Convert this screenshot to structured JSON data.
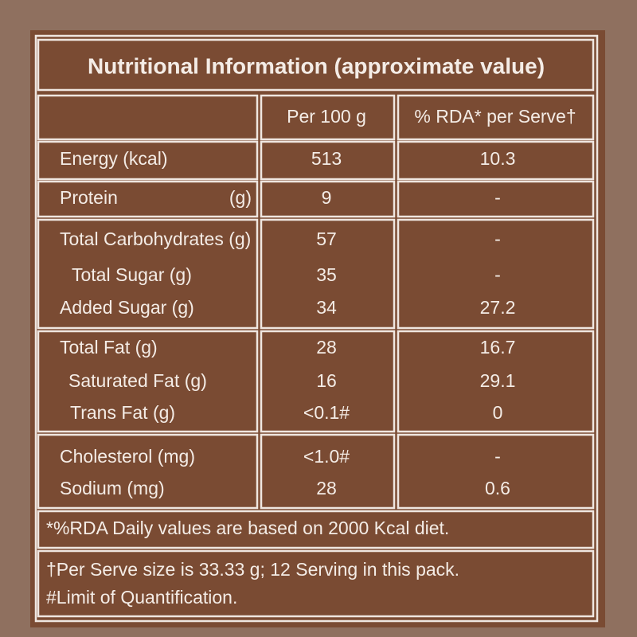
{
  "title": "Nutritional Information (approximate value)",
  "table": {
    "headers": [
      "Per 100 g",
      "% RDA* per Serve†"
    ],
    "groups": [
      [
        {
          "label": "Energy (kcal)",
          "per_100g": 513,
          "rda": 10.3
        }
      ],
      [
        {
          "label": "Protein",
          "unit": "(g)",
          "per_100g": 9,
          "rda": "-"
        }
      ],
      [
        {
          "label": "Total Carbohydrates (g)",
          "per_100g": 57,
          "rda": "-"
        },
        {
          "label": "Total Sugar (g)",
          "per_100g": 35,
          "rda": "-"
        },
        {
          "label": "Added Sugar (g)",
          "per_100g": 34,
          "rda": 27.2
        }
      ],
      [
        {
          "label": "Total Fat (g)",
          "per_100g": 28,
          "rda": 16.7
        },
        {
          "label": "Saturated Fat (g)",
          "per_100g": 16,
          "rda": 29.1
        },
        {
          "label": "Trans Fat (g)",
          "per_100g": "<0.1#",
          "rda": 0
        }
      ],
      [
        {
          "label": "Cholesterol (mg)",
          "per_100g": "<1.0#",
          "rda": "-"
        },
        {
          "label": "Sodium (mg)",
          "per_100g": 28,
          "rda": 0.6
        }
      ]
    ]
  },
  "footnotes": [
    "*%RDA Daily values are based on 2000 Kcal diet.",
    "†Per Serve size is 33.33 g; 12 Serving in this pack.",
    "#Limit of Quantification."
  ]
}
